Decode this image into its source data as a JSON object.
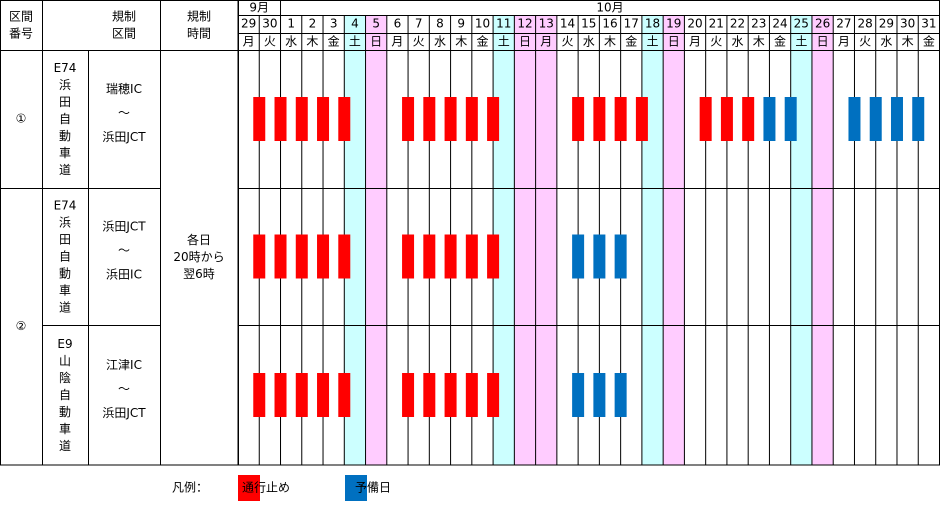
{
  "header": {
    "number": [
      "区間",
      "番号"
    ],
    "section": [
      "規制",
      "区間"
    ],
    "time": [
      "規制",
      "時間"
    ]
  },
  "months": [
    {
      "label": "9月",
      "span": 2
    },
    {
      "label": "10月",
      "span": 31
    }
  ],
  "days": [
    "29",
    "30",
    "1",
    "2",
    "3",
    "4",
    "5",
    "6",
    "7",
    "8",
    "9",
    "10",
    "11",
    "12",
    "13",
    "14",
    "15",
    "16",
    "17",
    "18",
    "19",
    "20",
    "21",
    "22",
    "23",
    "24",
    "25",
    "26",
    "27",
    "28",
    "29",
    "30",
    "31"
  ],
  "weekdays": [
    "月",
    "火",
    "水",
    "木",
    "金",
    "土",
    "日",
    "月",
    "火",
    "水",
    "木",
    "金",
    "土",
    "日",
    "月",
    "火",
    "水",
    "木",
    "金",
    "土",
    "日",
    "月",
    "火",
    "水",
    "木",
    "金",
    "土",
    "日",
    "月",
    "火",
    "水",
    "木",
    "金"
  ],
  "holidays": [
    14
  ],
  "time_text": [
    "各日",
    "20時から",
    "翌6時"
  ],
  "groups": [
    {
      "number": "①",
      "rows": 1
    },
    {
      "number": "②",
      "rows": 2
    }
  ],
  "rows": [
    {
      "road": [
        "E74",
        "浜",
        "田",
        "自",
        "動",
        "車",
        "道"
      ],
      "section": [
        "瑞穂IC",
        "～",
        "浜田JCT"
      ],
      "closed": [
        0,
        1,
        2,
        3,
        4,
        7,
        8,
        9,
        10,
        11,
        15,
        16,
        17,
        18,
        21,
        22,
        23
      ],
      "reserve": [
        24,
        25,
        28,
        29,
        30,
        31
      ]
    },
    {
      "road": [
        "E74",
        "浜",
        "田",
        "自",
        "動",
        "車",
        "道"
      ],
      "section": [
        "浜田JCT",
        "～",
        "浜田IC"
      ],
      "closed": [
        0,
        1,
        2,
        3,
        4,
        7,
        8,
        9,
        10,
        11
      ],
      "reserve": [
        15,
        16,
        17
      ]
    },
    {
      "road": [
        "E9",
        "山",
        "陰",
        "自",
        "動",
        "車",
        "道"
      ],
      "section": [
        "江津IC",
        "～",
        "浜田JCT"
      ],
      "closed": [
        0,
        1,
        2,
        3,
        4,
        7,
        8,
        9,
        10,
        11
      ],
      "reserve": [
        15,
        16,
        17
      ]
    }
  ],
  "legend": {
    "label": "凡例：",
    "items": [
      {
        "name": "通行止め",
        "color": "#ff0000"
      },
      {
        "name": "予備日",
        "color": "#0070c0"
      }
    ]
  },
  "colors": {
    "saturday": "#ccffff",
    "sunday": "#ffccff"
  }
}
